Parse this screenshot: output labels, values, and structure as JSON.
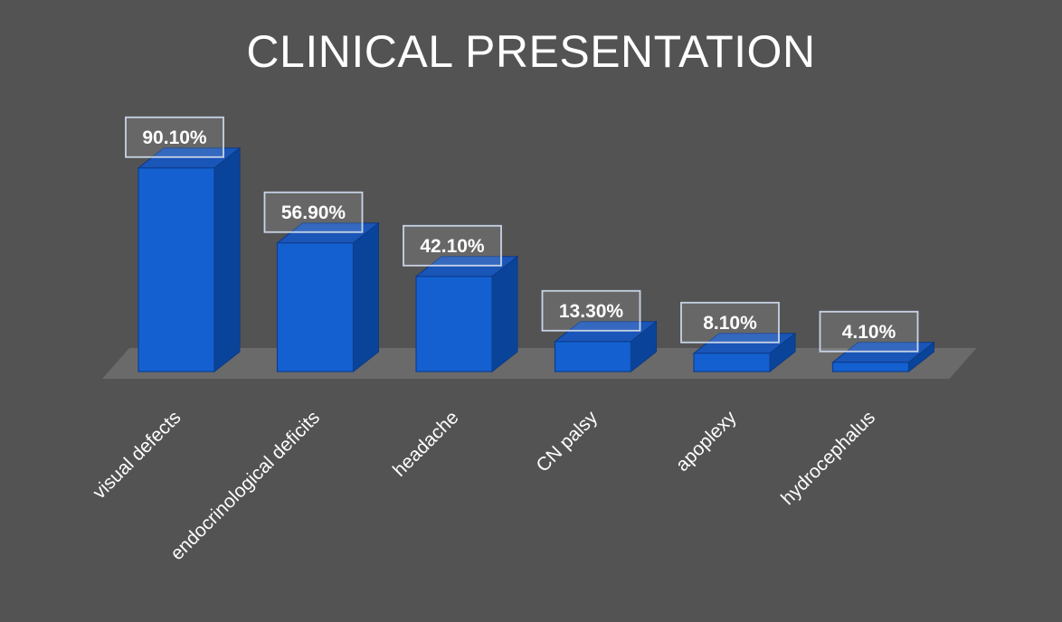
{
  "chart_data": {
    "type": "bar",
    "title": "CLINICAL PRESENTATION",
    "categories": [
      "visual defects",
      "endocrinological deficits",
      "headache",
      "CN palsy",
      "apoplexy",
      "hydrocephalus"
    ],
    "values": [
      90.1,
      56.9,
      42.1,
      13.3,
      8.1,
      4.1
    ],
    "data_labels": [
      "90.10%",
      "56.90%",
      "42.10%",
      "13.30%",
      "8.10%",
      "4.10%"
    ],
    "ylim": [
      0,
      100
    ],
    "grid": false,
    "legend": "none",
    "style": "3d-column",
    "colors": {
      "background": "#535353",
      "bar_front": "#1460d0",
      "bar_side": "#0a449a",
      "bar_top": "#1a55b8",
      "floor": "#6e6e6e"
    }
  }
}
